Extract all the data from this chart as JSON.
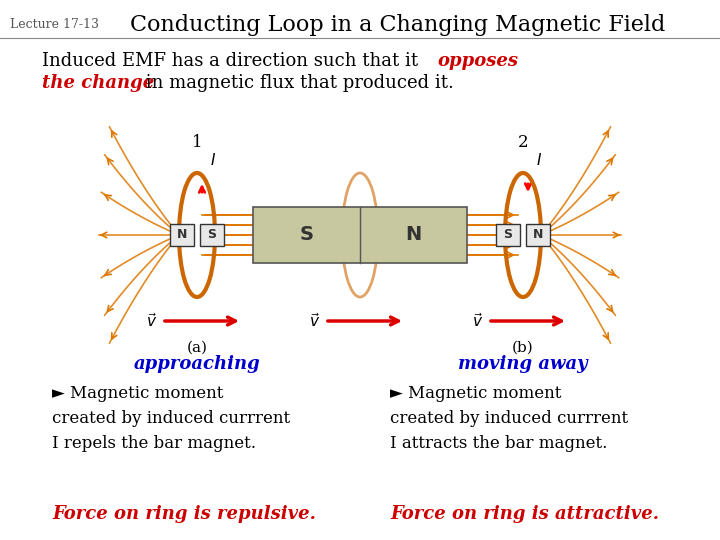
{
  "lecture_label": "Lecture 17-13",
  "title": "Conducting Loop in a Changing Magnetic Field",
  "bg_color": "#ffffff",
  "title_color": "#000000",
  "label_color": "#0000cc",
  "bullet_color": "#000000",
  "force_color": "#cc0000",
  "ring_color": "#cc6600",
  "magnet_color": "#c8c8a0",
  "field_line_color": "#dd7700",
  "arrow_color": "#dd0000",
  "label_approaching": "approaching",
  "label_moving_away": "moving away",
  "left_force": "Force on ring is repulsive.",
  "right_force": "Force on ring is attractive."
}
